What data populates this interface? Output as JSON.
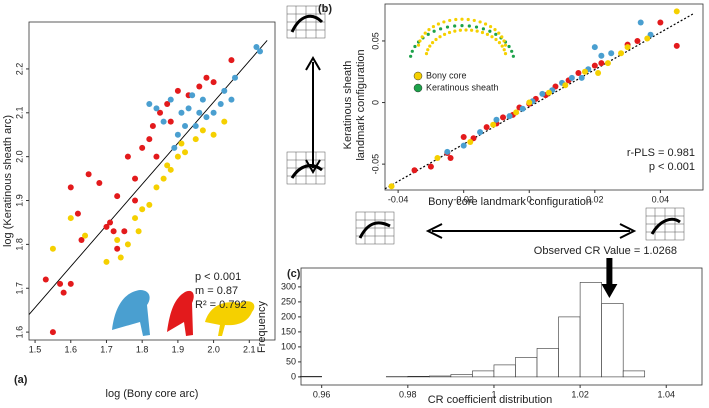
{
  "chart_data": [
    {
      "type": "scatter",
      "panel": "(a)",
      "xlabel": "log (Bony core arc)",
      "ylabel": "log (Keratinous sheath arc)",
      "xlim": [
        1.483,
        2.172
      ],
      "ylim": [
        1.582,
        2.307
      ],
      "xticks": [
        1.5,
        1.6,
        1.7,
        1.8,
        1.9,
        {
          "value": 2,
          "label": "2.0"
        },
        2.1
      ],
      "yticks": [
        1.6,
        1.7,
        1.8,
        1.9,
        {
          "value": 2,
          "label": "2.0"
        },
        2.1,
        2.2
      ],
      "series": [
        {
          "color": "#e31a1c",
          "x": [
            1.53,
            1.55,
            1.57,
            1.58,
            1.6,
            1.6,
            1.62,
            1.63,
            1.65,
            1.68,
            1.7,
            1.71,
            1.73,
            1.73,
            1.75,
            1.76,
            1.78,
            1.78,
            1.8,
            1.82,
            1.83,
            1.85,
            1.87,
            1.88,
            1.9,
            1.93,
            1.96,
            1.98,
            2.0,
            2.05,
            1.84,
            1.72
          ],
          "values": [
            1.72,
            1.6,
            1.71,
            1.69,
            1.71,
            1.93,
            1.87,
            1.81,
            1.96,
            1.94,
            1.84,
            1.85,
            1.79,
            1.91,
            1.83,
            2.0,
            1.9,
            1.95,
            2.02,
            2.04,
            2.07,
            2.1,
            2.12,
            2.08,
            2.15,
            2.14,
            2.16,
            2.18,
            2.17,
            2.22,
            2.0,
            1.83
          ]
        },
        {
          "color": "#4a9fd0",
          "x": [
            1.82,
            1.84,
            1.86,
            1.88,
            1.9,
            1.91,
            1.92,
            1.93,
            1.95,
            1.96,
            1.97,
            1.98,
            2.0,
            2.02,
            2.03,
            2.05,
            2.06,
            2.12,
            2.13,
            1.89,
            1.94
          ],
          "values": [
            2.12,
            2.11,
            2.08,
            2.13,
            2.05,
            2.1,
            2.07,
            2.11,
            2.07,
            2.1,
            2.13,
            2.09,
            2.1,
            2.12,
            2.15,
            2.13,
            2.18,
            2.25,
            2.24,
            2.02,
            2.14
          ]
        },
        {
          "color": "#f5d000",
          "x": [
            1.55,
            1.6,
            1.64,
            1.7,
            1.74,
            1.76,
            1.78,
            1.8,
            1.82,
            1.84,
            1.86,
            1.87,
            1.88,
            1.9,
            1.91,
            1.92,
            1.95,
            1.97,
            2.0,
            2.03,
            1.79,
            1.73
          ],
          "values": [
            1.79,
            1.86,
            1.82,
            1.76,
            1.77,
            1.8,
            1.86,
            1.88,
            1.89,
            1.93,
            1.95,
            1.98,
            1.97,
            2.0,
            2.03,
            2.01,
            2.04,
            2.06,
            2.05,
            2.08,
            1.83,
            1.81
          ]
        }
      ],
      "fit": {
        "x": [
          1.483,
          2.15
        ],
        "y": [
          1.64,
          2.265
        ]
      },
      "annotations": [
        "p < 0.001",
        "m = 0.87",
        "R² = 0.792"
      ]
    },
    {
      "type": "scatter",
      "panel": "(b)",
      "xlabel": "Bony core landmark configuration",
      "ylabel": [
        "Keratinous sheath",
        "landmark configuration"
      ],
      "xlim": [
        -0.044,
        0.053
      ],
      "ylim": [
        -0.071,
        0.08
      ],
      "xticks": [
        -0.04,
        -0.02,
        0,
        0.02,
        0.04
      ],
      "yticks": [
        -0.05,
        0,
        0.05
      ],
      "series": [
        {
          "color": "#e31a1c",
          "x": [
            -0.035,
            -0.03,
            -0.025,
            -0.02,
            -0.017,
            -0.013,
            -0.01,
            -0.008,
            -0.005,
            -0.003,
            0,
            0.002,
            0.005,
            0.008,
            0.012,
            0.015,
            0.02,
            0.022,
            0.03,
            0.033,
            0.045,
            0.04,
            -0.024
          ],
          "values": [
            -0.055,
            -0.052,
            -0.041,
            -0.028,
            -0.029,
            -0.02,
            -0.017,
            -0.012,
            -0.01,
            -0.004,
            -0.001,
            0.003,
            0.006,
            0.013,
            0.018,
            0.024,
            0.03,
            0.032,
            0.047,
            0.05,
            0.046,
            0.065,
            -0.045
          ]
        },
        {
          "color": "#4a9fd0",
          "x": [
            -0.02,
            -0.015,
            -0.01,
            -0.006,
            -0.002,
            0.001,
            0.004,
            0.007,
            0.01,
            0.013,
            0.018,
            0.022,
            0.025,
            0.02,
            0.037,
            0.034,
            0.016,
            -0.025
          ],
          "values": [
            -0.035,
            -0.024,
            -0.014,
            -0.011,
            -0.005,
            0.001,
            0.007,
            0.01,
            0.016,
            0.02,
            0.027,
            0.038,
            0.04,
            0.045,
            0.055,
            0.065,
            0.02,
            -0.04
          ]
        },
        {
          "color": "#f5d000",
          "x": [
            -0.042,
            -0.028,
            -0.018,
            -0.011,
            -0.004,
            0,
            0.006,
            0.011,
            0.017,
            0.021,
            0.028,
            0.03,
            0.045,
            0.024,
            0.036
          ],
          "values": [
            -0.068,
            -0.045,
            -0.032,
            -0.018,
            -0.008,
            0,
            0.008,
            0.014,
            0.025,
            0.024,
            0.04,
            0.045,
            0.074,
            0.032,
            0.052
          ]
        }
      ],
      "fit": {
        "x": [
          -0.044,
          0.05
        ],
        "y": [
          -0.07,
          0.072
        ]
      },
      "fit_dash": true,
      "legend": [
        {
          "name": "Bony core",
          "color": "#f5d000"
        },
        {
          "name": "Keratinous sheath",
          "color": "#1ca24a"
        }
      ],
      "annotations": [
        "r-PLS = 0.981",
        "p < 0.001"
      ]
    },
    {
      "type": "histogram",
      "panel": "(c)",
      "xlabel": "CR coefficient distribution",
      "ylabel": "Frequency",
      "xlim": [
        0.9552,
        1.0483
      ],
      "ylim": [
        -27,
        363
      ],
      "xticks": [
        0.96,
        0.98,
        1,
        1.02,
        1.04
      ],
      "yticks": [
        0,
        50,
        100,
        150,
        200,
        250,
        300
      ],
      "bins": [
        0.955,
        0.96,
        0.965,
        0.97,
        0.975,
        0.98,
        0.985,
        0.99,
        0.995,
        1.0,
        1.005,
        1.01,
        1.015,
        1.02,
        1.025,
        1.03,
        1.035
      ],
      "values": [
        2,
        0,
        0,
        0,
        1,
        2,
        3,
        8,
        20,
        40,
        65,
        95,
        200,
        315,
        245,
        20
      ],
      "color": "#ffffff",
      "annotation": "Observed CR Value = 1.0268",
      "observed": 1.0268
    }
  ]
}
